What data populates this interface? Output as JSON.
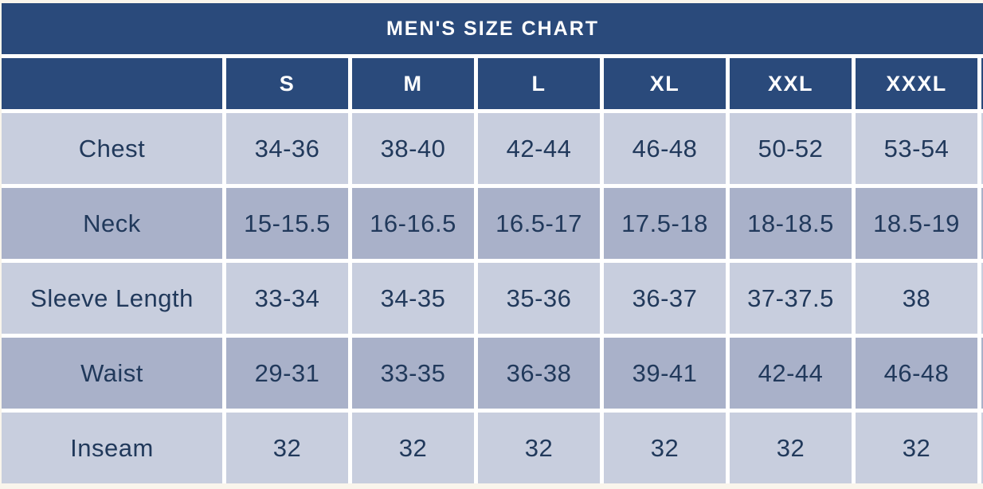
{
  "colors": {
    "header_bg": "#2a4a7b",
    "header_text": "#ffffff",
    "row_light_bg": "#c8cede",
    "row_dark_bg": "#a9b1c9",
    "body_text": "#21395b",
    "cell_gap": "#ffffff",
    "page_bg": "#f9f5ec"
  },
  "chart_data": {
    "type": "table",
    "title": "MEN'S SIZE CHART",
    "columns": [
      "",
      "S",
      "M",
      "L",
      "XL",
      "XXL",
      "XXXL"
    ],
    "rows": [
      {
        "label": "Chest",
        "values": [
          "34-36",
          "38-40",
          "42-44",
          "46-48",
          "50-52",
          "53-54"
        ]
      },
      {
        "label": "Neck",
        "values": [
          "15-15.5",
          "16-16.5",
          "16.5-17",
          "17.5-18",
          "18-18.5",
          "18.5-19"
        ]
      },
      {
        "label": "Sleeve Length",
        "values": [
          "33-34",
          "34-35",
          "35-36",
          "36-37",
          "37-37.5",
          "38"
        ]
      },
      {
        "label": "Waist",
        "values": [
          "29-31",
          "33-35",
          "36-38",
          "39-41",
          "42-44",
          "46-48"
        ]
      },
      {
        "label": "Inseam",
        "values": [
          "32",
          "32",
          "32",
          "32",
          "32",
          "32"
        ]
      }
    ]
  }
}
